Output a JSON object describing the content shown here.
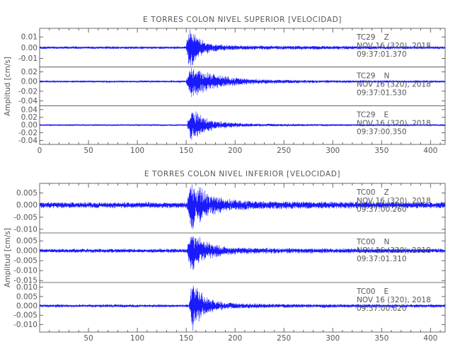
{
  "colors": {
    "trace": "#1a1aff",
    "axis": "#444444",
    "text": "#555555"
  },
  "chart_data": [
    {
      "type": "line",
      "title": "E TORRES COLON NIVEL SUPERIOR [VELOCIDAD]",
      "xlabel": "",
      "ylabel": "Amplitud [cm/s]",
      "xlim": [
        0,
        415
      ],
      "xticks": [
        0,
        50,
        100,
        150,
        200,
        250,
        300,
        350,
        400
      ],
      "xtick_labels": [
        "0",
        "50",
        "100",
        "150",
        "200",
        "250",
        "300",
        "350",
        "400"
      ],
      "grid": false,
      "series": [
        {
          "name": "TC29 Z",
          "station": "TC29",
          "component": "Z",
          "date": "NOV 16 (320), 2018",
          "time": "09:37:01.370",
          "ylim": [
            -0.018,
            0.018
          ],
          "yticks": [
            0.01,
            0.0,
            -0.01
          ],
          "ytick_labels": [
            "0.01",
            "0.00",
            "-0.01"
          ],
          "waveform": {
            "noise": 0.0011,
            "onset": 150,
            "peak": 0.017,
            "rise": 3,
            "decay": 10,
            "tail": 0.0012
          }
        },
        {
          "name": "TC29 N",
          "station": "TC29",
          "component": "N",
          "date": "NOV 16 (320), 2018",
          "time": "09:37:01.530",
          "ylim": [
            -0.05,
            0.03
          ],
          "yticks": [
            0.02,
            0.0,
            -0.02,
            -0.04
          ],
          "ytick_labels": [
            "0.02",
            "0.00",
            "-0.02",
            "-0.04"
          ],
          "waveform": {
            "noise": 0.002,
            "onset": 150,
            "peak": 0.028,
            "rise": 5,
            "decay": 24,
            "tail": 0.002
          }
        },
        {
          "name": "TC29 E",
          "station": "TC29",
          "component": "E",
          "date": "NOV 16 (320), 2018",
          "time": "09:37:00.350",
          "ylim": [
            -0.05,
            0.05
          ],
          "yticks": [
            0.04,
            0.02,
            0.0,
            -0.02,
            -0.04
          ],
          "ytick_labels": [
            "0.04",
            "0.02",
            "0.00",
            "-0.02",
            "-0.04"
          ],
          "waveform": {
            "noise": 0.002,
            "onset": 151,
            "peak": 0.036,
            "rise": 4,
            "decay": 16,
            "tail": 0.002
          }
        }
      ]
    },
    {
      "type": "line",
      "title": "E TORRES COLON NIVEL INFERIOR [VELOCIDAD]",
      "xlabel": "",
      "ylabel": "Amplitud [cm/s]",
      "xlim": [
        0,
        415
      ],
      "xticks": [
        50,
        100,
        150,
        200,
        250,
        300,
        350,
        400
      ],
      "xtick_labels": [
        "50",
        "100",
        "150",
        "200",
        "250",
        "300",
        "350",
        "400"
      ],
      "grid": false,
      "series": [
        {
          "name": "TC00 Z",
          "station": "TC00",
          "component": "Z",
          "date": "NOV 16 (320), 2018",
          "time": "09:37:00.260",
          "ylim": [
            -0.0115,
            0.009
          ],
          "yticks": [
            0.005,
            0.0,
            -0.005,
            -0.01
          ],
          "ytick_labels": [
            "0.005",
            "0.000",
            "-0.005",
            "-0.010"
          ],
          "waveform": {
            "noise": 0.0011,
            "onset": 151,
            "peak": 0.0085,
            "rise": 4,
            "decay": 15,
            "tail": 0.0007
          }
        },
        {
          "name": "TC00 N",
          "station": "TC00",
          "component": "N",
          "date": "NOV 16 (320), 2018",
          "time": "09:37:01.310",
          "ylim": [
            -0.016,
            0.009
          ],
          "yticks": [
            0.005,
            0.0,
            -0.005,
            -0.01,
            -0.015
          ],
          "ytick_labels": [
            "0.005",
            "0.000",
            "-0.005",
            "-0.010",
            "-0.015"
          ],
          "waveform": {
            "noise": 0.0009,
            "onset": 151,
            "peak": 0.0085,
            "rise": 4,
            "decay": 14,
            "tail": 0.0007
          }
        },
        {
          "name": "TC00 E",
          "station": "TC00",
          "component": "E",
          "date": "NOV 16 (320), 2018",
          "time": "09:37:00.620",
          "ylim": [
            -0.014,
            0.0125
          ],
          "yticks": [
            0.01,
            0.005,
            0.0,
            -0.005,
            -0.01
          ],
          "ytick_labels": [
            "0.010",
            "0.005",
            "0.000",
            "-0.005",
            "-0.010"
          ],
          "waveform": {
            "noise": 0.0007,
            "onset": 153,
            "peak": 0.011,
            "rise": 3,
            "decay": 12,
            "tail": 0.0006
          }
        }
      ]
    }
  ]
}
